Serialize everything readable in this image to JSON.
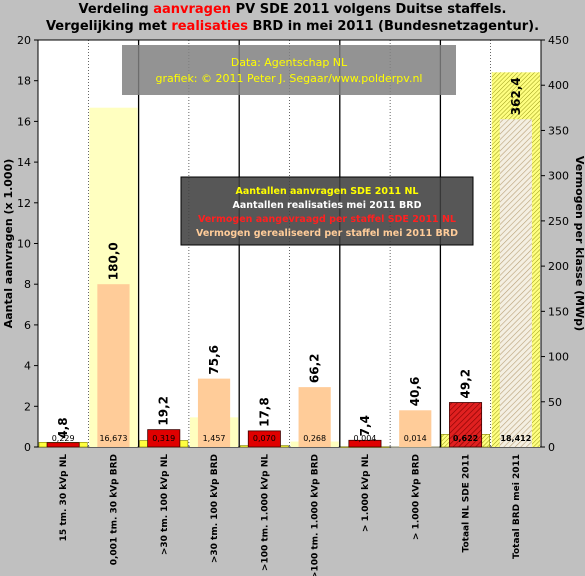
{
  "title": {
    "line1": {
      "pre": "Verdeling ",
      "highlight": "aanvragen",
      "post": " PV SDE 2011 volgens Duitse staffels."
    },
    "line2": {
      "pre": "Vergelijking met ",
      "highlight": "realisaties",
      "post": " BRD in mei 2011 (Bundesnetzagentur)."
    }
  },
  "colors": {
    "background": "#c0c0c0",
    "plot_background": "#ffffff",
    "red_bar": "#e00000",
    "yellow_bar": "#ffffc0",
    "peach_bar": "#ffcc99",
    "title_highlight": "#ff0000"
  },
  "source_box": {
    "line1": "Data: Agentschap NL",
    "line2": "grafiek: © 2011 Peter J. Segaar/www.polderpv.nl"
  },
  "legend": [
    {
      "text": "Aantallen aanvragen SDE 2011 NL",
      "color": "#ffff00"
    },
    {
      "text": "Aantallen realisaties mei 2011 BRD",
      "color": "#ffffff"
    },
    {
      "text": "Vermogen aangevraagd per staffel SDE 2011 NL",
      "color": "#ff2020"
    },
    {
      "text": "Vermogen gerealiseerd per staffel mei 2011 BRD",
      "color": "#ffcc99"
    }
  ],
  "chart_data": {
    "type": "bar",
    "ylabel": "Aantal aanvragen (x 1.000)",
    "y2label": "Vermogen per klasse (MWp)",
    "ylim": [
      0,
      20
    ],
    "y2lim": [
      0,
      450
    ],
    "y_ticks": [
      "0",
      "2",
      "4",
      "6",
      "8",
      "10",
      "12",
      "14",
      "16",
      "18",
      "20"
    ],
    "y2_ticks": [
      "0",
      "50",
      "100",
      "150",
      "200",
      "250",
      "300",
      "350",
      "400",
      "450"
    ],
    "categories": [
      "15 tm. 30 kVp NL",
      "0,001 tm. 30 kVp BRD",
      ">30 tm. 100 kVp NL",
      ">30 tm. 100 kVp BRD",
      ">100 tm. 1.000 kVp NL",
      ">100 tm. 1.000 kVp BRD",
      "> 1.000 kVp NL",
      "> 1.000 kVp BRD",
      "Totaal NL SDE 2011",
      "Totaal BRD mei 2011"
    ],
    "series": [
      {
        "name": "Aantallen aanvragen SDE 2011 NL",
        "values": [
          0.229,
          null,
          0.319,
          null,
          0.07,
          null,
          0.004,
          null,
          0.622,
          null
        ]
      },
      {
        "name": "Aantallen realisaties mei 2011 BRD",
        "values": [
          null,
          16.673,
          null,
          1.457,
          null,
          0.268,
          null,
          0.014,
          null,
          18.412
        ]
      },
      {
        "name": "Vermogen aangevraagd per staffel SDE 2011 NL",
        "values": [
          4.8,
          null,
          19.2,
          null,
          17.8,
          null,
          7.4,
          null,
          49.2,
          null
        ]
      },
      {
        "name": "Vermogen gerealiseerd per staffel mei 2011 BRD",
        "values": [
          null,
          180.0,
          null,
          75.6,
          null,
          66.2,
          null,
          40.6,
          null,
          362.4
        ]
      }
    ],
    "count_labels": [
      "0,229",
      "16,673",
      "0,319",
      "1,457",
      "0,070",
      "0,268",
      "0,004",
      "0,014",
      "0,622",
      "18,412"
    ],
    "mw_labels": [
      "4,8",
      "180,0",
      "19,2",
      "75,6",
      "17,8",
      "66,2",
      "7,4",
      "40,6",
      "49,2",
      "362,4"
    ],
    "grid": false
  }
}
